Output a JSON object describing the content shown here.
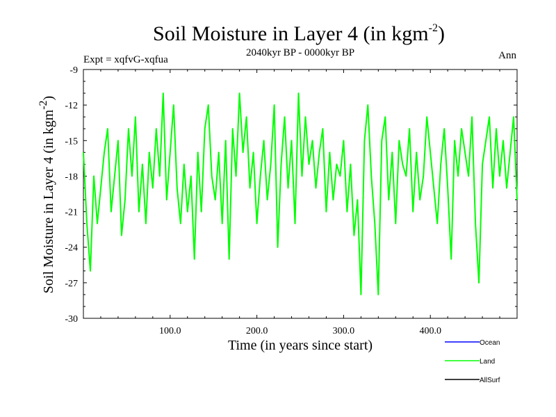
{
  "chart_data": {
    "type": "line",
    "title": "Soil Moisture in Layer 4 (in kgm",
    "title_sup": "-2",
    "title_close": ")",
    "subtitle_left": "Expt = xqfvG-xqfua",
    "subtitle_center": "2040kyr BP - 0000kyr BP",
    "subtitle_right": "Ann",
    "xlabel": "Time (in years since start)",
    "ylabel": "Soil Moisture in Layer 4 (in kgm",
    "ylabel_sup": "-2",
    "ylabel_close": ")",
    "xlim": [
      0,
      500
    ],
    "ylim": [
      -30,
      -9
    ],
    "xticks": [
      100,
      200,
      300,
      400
    ],
    "xtick_labels": [
      "100.0",
      "200.0",
      "300.0",
      "400.0"
    ],
    "yticks": [
      -9,
      -12,
      -15,
      -18,
      -21,
      -24,
      -27,
      -30
    ],
    "ytick_labels": [
      "-9",
      "-12",
      "-15",
      "-18",
      "-21",
      "-24",
      "-27",
      "-30"
    ],
    "legend_position": "bottom-right",
    "series": [
      {
        "name": "Ocean",
        "color": "#0000ff",
        "x": [],
        "values": []
      },
      {
        "name": "Land",
        "color": "#00ff00",
        "x": [
          0,
          4,
          8,
          12,
          16,
          20,
          24,
          28,
          32,
          36,
          40,
          44,
          48,
          52,
          56,
          60,
          64,
          68,
          72,
          76,
          80,
          84,
          88,
          92,
          96,
          100,
          104,
          108,
          112,
          116,
          120,
          124,
          128,
          132,
          136,
          140,
          144,
          148,
          152,
          156,
          160,
          164,
          168,
          172,
          176,
          180,
          184,
          188,
          192,
          196,
          200,
          204,
          208,
          212,
          216,
          220,
          224,
          228,
          232,
          236,
          240,
          244,
          248,
          252,
          256,
          260,
          264,
          268,
          272,
          276,
          280,
          284,
          288,
          292,
          296,
          300,
          304,
          308,
          312,
          316,
          320,
          324,
          328,
          332,
          336,
          340,
          344,
          348,
          352,
          356,
          360,
          364,
          368,
          372,
          376,
          380,
          384,
          388,
          392,
          396,
          400,
          404,
          408,
          412,
          416,
          420,
          424,
          428,
          432,
          436,
          440,
          444,
          448,
          452,
          456,
          460,
          464,
          468,
          472,
          476,
          480,
          484,
          488,
          492,
          496,
          500
        ],
        "values": [
          -16,
          -22,
          -26,
          -18,
          -22,
          -19,
          -16,
          -14,
          -21,
          -18,
          -15,
          -23,
          -20,
          -14,
          -18,
          -13,
          -21,
          -17,
          -22,
          -16,
          -19,
          -14,
          -18,
          -11,
          -20,
          -16,
          -12,
          -19,
          -22,
          -17,
          -21,
          -18,
          -25,
          -16,
          -21,
          -14,
          -12,
          -18,
          -20,
          -16,
          -22,
          -15,
          -25,
          -14,
          -18,
          -11,
          -16,
          -13,
          -19,
          -16,
          -22,
          -18,
          -15,
          -20,
          -17,
          -12,
          -24,
          -17,
          -13,
          -19,
          -15,
          -22,
          -11,
          -18,
          -13,
          -17,
          -15,
          -19,
          -16,
          -14,
          -21,
          -16,
          -20,
          -17,
          -18,
          -15,
          -21,
          -17,
          -23,
          -20,
          -28,
          -15,
          -12,
          -18,
          -22,
          -28,
          -15,
          -13,
          -20,
          -16,
          -22,
          -15,
          -17,
          -18,
          -14,
          -21,
          -16,
          -20,
          -18,
          -13,
          -16,
          -19,
          -22,
          -17,
          -14,
          -19,
          -25,
          -15,
          -18,
          -14,
          -16,
          -18,
          -13,
          -22,
          -27,
          -17,
          -15,
          -13,
          -19,
          -14,
          -18,
          -15,
          -19,
          -16,
          -13,
          -20
        ]
      },
      {
        "name": "AllSurf",
        "color": "#000000",
        "x": [],
        "values": []
      }
    ]
  }
}
